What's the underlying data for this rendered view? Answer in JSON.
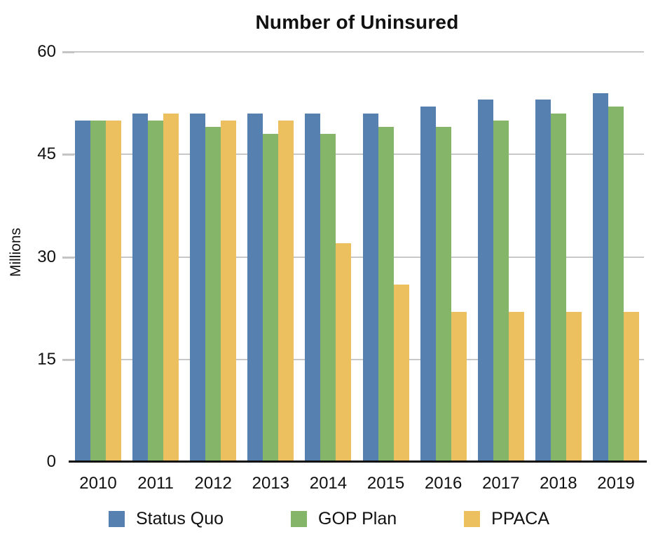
{
  "chart_data": {
    "type": "bar",
    "title": "Number of Uninsured",
    "xlabel": "",
    "ylabel": "Millions",
    "ylim": [
      0,
      60
    ],
    "y_ticks": [
      0,
      15,
      30,
      45,
      60
    ],
    "grid": true,
    "legend_position": "bottom",
    "categories": [
      "2010",
      "2011",
      "2012",
      "2013",
      "2014",
      "2015",
      "2016",
      "2017",
      "2018",
      "2019"
    ],
    "series": [
      {
        "name": "Status Quo",
        "color": "#5580B0",
        "values": [
          50,
          51,
          51,
          51,
          51,
          51,
          52,
          53,
          53,
          54
        ]
      },
      {
        "name": "GOP Plan",
        "color": "#85B569",
        "values": [
          50,
          50,
          49,
          48,
          48,
          49,
          49,
          50,
          51,
          52
        ]
      },
      {
        "name": "PPACA",
        "color": "#EDC05F",
        "values": [
          50,
          51,
          50,
          50,
          32,
          26,
          22,
          22,
          22,
          22
        ]
      }
    ]
  },
  "colors": {
    "gridline": "#C8C8C8",
    "axis": "#111111",
    "text": "#111111",
    "background": "#FFFFFF"
  }
}
